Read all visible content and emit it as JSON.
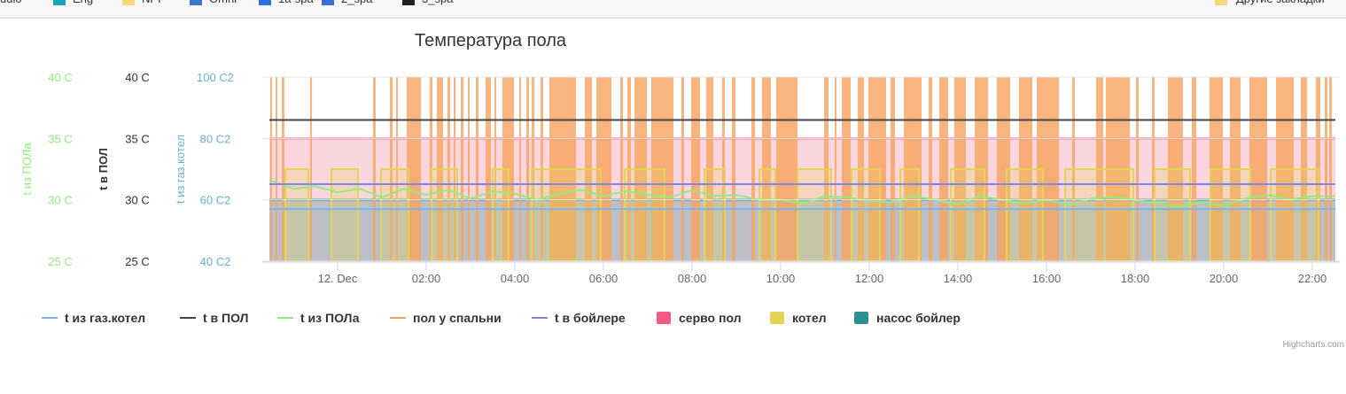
{
  "bookmarks": [
    "udio",
    "Eng",
    "NPI",
    "Omni",
    "1a-spa",
    "2_spa",
    "3_spa",
    "Другие закладки"
  ],
  "chart_data": {
    "type": "combo",
    "title": "Температура пола",
    "xlim": [
      -1.7,
      22.62
    ],
    "xticks": [
      {
        "value": 0,
        "label": "12. Dec"
      },
      {
        "value": 2,
        "label": "02:00"
      },
      {
        "value": 4,
        "label": "04:00"
      },
      {
        "value": 6,
        "label": "06:00"
      },
      {
        "value": 8,
        "label": "08:00"
      },
      {
        "value": 10,
        "label": "10:00"
      },
      {
        "value": 12,
        "label": "12:00"
      },
      {
        "value": 14,
        "label": "14:00"
      },
      {
        "value": 16,
        "label": "16:00"
      },
      {
        "value": 18,
        "label": "18:00"
      },
      {
        "value": 20,
        "label": "20:00"
      },
      {
        "value": 22,
        "label": "22:00"
      }
    ],
    "y_title": "t из ПОЛа",
    "y_color": "#90ed7d",
    "ylim": [
      25,
      40
    ],
    "yticks": [
      {
        "value": 25,
        "label": "25 C"
      },
      {
        "value": 30,
        "label": "30 C"
      },
      {
        "value": 35,
        "label": "35 C"
      },
      {
        "value": 40,
        "label": "40 C"
      }
    ],
    "y2_title": "t в ПОЛ",
    "y2_color": "#333333",
    "y2lim": [
      25,
      40
    ],
    "y2ticks": [
      {
        "value": 25,
        "label": "25 C"
      },
      {
        "value": 30,
        "label": "30 C"
      },
      {
        "value": 35,
        "label": "35 C"
      },
      {
        "value": 40,
        "label": "40 C"
      }
    ],
    "y3_title": "t из газ.котел",
    "y3_color": "#6aaed6",
    "y3lim": [
      40,
      100
    ],
    "y3ticks": [
      {
        "value": 40,
        "label": "40 C2"
      },
      {
        "value": 60,
        "label": "60 C2"
      },
      {
        "value": 80,
        "label": "80 C2"
      },
      {
        "value": 100,
        "label": "100 C2"
      }
    ],
    "grid": true,
    "series": [
      {
        "name": "t из газ.котел",
        "color": "#7cb5ec",
        "type": "line",
        "axis": "y3",
        "x": [
          -1.54,
          22.52
        ],
        "values": [
          57,
          57
        ]
      },
      {
        "name": "t в ПОЛ",
        "color": "#434348",
        "type": "line",
        "axis": "y2",
        "x": [
          -1.54,
          22.52
        ],
        "values": [
          36.5,
          36.5
        ]
      },
      {
        "name": "t из ПОЛа",
        "color": "#90ed7d",
        "type": "line",
        "axis": "y",
        "x": [
          -1.54,
          -1,
          -0.5,
          0,
          0.5,
          1,
          1.5,
          2,
          2.5,
          3,
          3.5,
          4,
          4.5,
          5,
          5.5,
          6,
          6.5,
          7,
          7.5,
          8,
          8.5,
          9,
          9.5,
          10,
          10.5,
          11,
          11.5,
          12,
          12.5,
          13,
          13.5,
          14,
          14.5,
          15,
          15.5,
          16,
          16.5,
          17,
          17.5,
          18,
          18.5,
          19,
          19.5,
          20,
          20.5,
          21,
          21.5,
          22,
          22.52
        ],
        "values": [
          31.6,
          30.9,
          31.1,
          30.6,
          30.9,
          30.2,
          30.9,
          30.4,
          30.8,
          30.1,
          30.7,
          30.5,
          30.0,
          30.5,
          30.8,
          30.3,
          30.7,
          30.4,
          30.2,
          30.8,
          30.3,
          30.4,
          30.0,
          30.0,
          29.7,
          30.3,
          30.2,
          29.9,
          29.8,
          30.3,
          30.0,
          29.6,
          30.3,
          30.0,
          29.7,
          30.0,
          29.6,
          30.1,
          30.2,
          30.0,
          29.7,
          29.4,
          29.8,
          29.5,
          30.1,
          30.4,
          30.0,
          30.3,
          30.3
        ]
      },
      {
        "name": "пол у спальни",
        "color": "#f7a35c",
        "type": "step-area",
        "axis": "y3",
        "x": [
          -1.52,
          -1.4,
          -1.26,
          -0.62,
          0.8,
          1.18,
          1.32,
          1.56,
          2.08,
          2.24,
          2.48,
          2.62,
          2.78,
          2.94,
          3.12,
          3.34,
          3.54,
          3.72,
          4.1,
          4.26,
          4.38,
          4.58,
          4.78,
          5.58,
          5.84,
          6.38,
          6.54,
          6.7,
          7.08,
          7.76,
          7.98,
          8.32,
          8.68,
          8.9,
          9.34,
          9.58,
          9.9,
          10.98,
          11.22,
          11.38,
          11.74,
          11.98,
          12.48,
          12.78,
          13.34,
          13.58,
          13.92,
          14.38,
          14.88,
          15.38,
          15.78,
          16.58,
          17.12,
          17.34,
          18.02,
          18.38,
          18.74,
          19.28,
          19.68,
          20.14,
          20.58,
          21.18,
          21.74,
          22.08,
          22.28,
          22.38
        ],
        "x_end": [
          -1.48,
          -1.36,
          -1.2,
          -0.58,
          0.86,
          1.24,
          1.36,
          1.88,
          2.14,
          2.38,
          2.54,
          2.66,
          2.84,
          2.98,
          3.18,
          3.46,
          3.58,
          3.98,
          4.14,
          4.32,
          4.44,
          4.64,
          5.38,
          5.74,
          6.18,
          6.44,
          6.62,
          6.98,
          7.58,
          7.82,
          8.18,
          8.48,
          8.74,
          8.98,
          9.42,
          9.78,
          10.38,
          11.08,
          11.26,
          11.58,
          11.88,
          12.38,
          12.58,
          13.18,
          13.42,
          13.78,
          14.18,
          14.68,
          15.18,
          15.68,
          16.28,
          16.64,
          17.28,
          17.88,
          18.08,
          18.44,
          19.08,
          19.38,
          19.98,
          20.38,
          20.98,
          21.58,
          21.88,
          22.18,
          22.34,
          22.44
        ],
        "values": [
          100,
          100,
          100,
          100,
          100,
          100,
          100,
          100,
          100,
          100,
          100,
          100,
          100,
          100,
          100,
          100,
          100,
          100,
          100,
          100,
          100,
          100,
          100,
          100,
          100,
          100,
          100,
          100,
          100,
          100,
          100,
          100,
          100,
          100,
          100,
          100,
          100,
          100,
          100,
          100,
          100,
          100,
          100,
          100,
          100,
          100,
          100,
          100,
          100,
          100,
          100,
          100,
          100,
          100,
          100,
          100,
          100,
          100,
          100,
          100,
          100,
          100,
          100,
          100,
          100,
          100
        ]
      },
      {
        "name": "t в бойлере",
        "color": "#8085e9",
        "type": "line",
        "axis": "y3",
        "x": [
          -1.54,
          22.52
        ],
        "values": [
          65.1,
          65.1
        ]
      },
      {
        "name": "серво пол",
        "color": "#f15c80",
        "type": "area",
        "axis": "y3",
        "x": [
          -1.54,
          22.52
        ],
        "values": [
          80,
          80
        ]
      },
      {
        "name": "котел",
        "color": "#e4d354",
        "type": "step-area",
        "axis": "y3",
        "x": [
          -1.18,
          -0.14,
          0.98,
          2.12,
          3.5,
          4.38,
          6.48,
          8.28,
          9.52,
          10.38,
          11.6,
          12.7,
          13.84,
          15.1,
          16.42,
          18.44,
          19.7,
          21.06
        ],
        "x_end": [
          -0.66,
          0.46,
          1.6,
          2.7,
          3.86,
          5.94,
          7.38,
          8.74,
          9.88,
          11.14,
          12.24,
          13.12,
          14.6,
          15.92,
          17.96,
          19.24,
          20.6,
          22.14
        ],
        "values": [
          70,
          70,
          70,
          70,
          70,
          70,
          70,
          70,
          70,
          70,
          70,
          70,
          70,
          70,
          70,
          70,
          70,
          70
        ]
      },
      {
        "name": "насос бойлер",
        "color": "#2b908f",
        "type": "area",
        "axis": "y3",
        "x": [
          -1.54,
          22.52
        ],
        "values": [
          60,
          60
        ]
      }
    ],
    "credits": "Highcharts.com"
  }
}
